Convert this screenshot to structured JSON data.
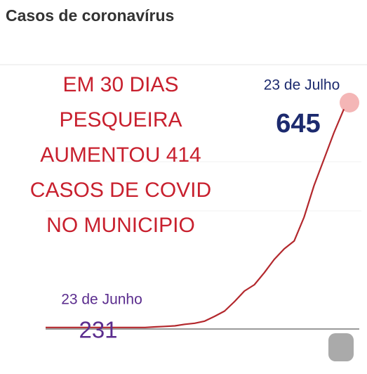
{
  "chart_data": {
    "type": "line",
    "title": "Casos de coronavírus",
    "overlay_text": [
      "EM 30 DIAS",
      "PESQUEIRA",
      "AUMENTOU 414",
      "CASOS DE COVID",
      "NO MUNICIPIO"
    ],
    "start_label": "23 de Junho",
    "end_label": "23 de Julho",
    "values": [
      231,
      231,
      231,
      231,
      231,
      231,
      231,
      231,
      231,
      231,
      231,
      232,
      233,
      234,
      237,
      239,
      243,
      252,
      262,
      280,
      300,
      312,
      335,
      360,
      380,
      395,
      440,
      500,
      550,
      600,
      645
    ],
    "color": "#b3282d",
    "ylim": [
      200,
      700
    ]
  }
}
